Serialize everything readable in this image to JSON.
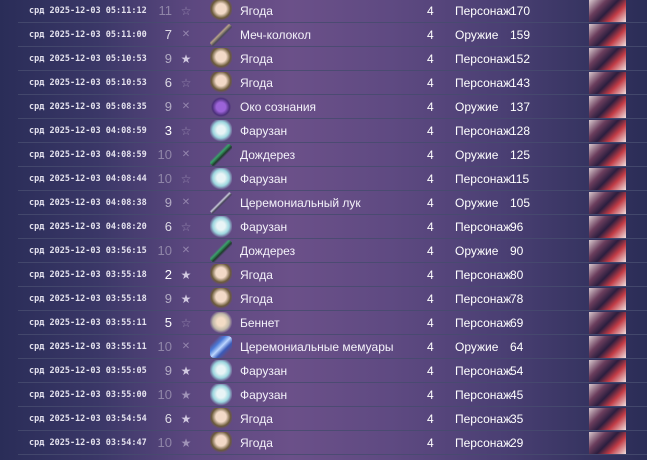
{
  "colors": {
    "bg_left": "#2a2d58",
    "bg_mid": "#6b5089",
    "text": "#ffffff"
  },
  "rows": [
    {
      "time": "срд 2025-12-03 05:11:12",
      "pity": "11",
      "mark": "star-outline-icon",
      "name": "Ягода",
      "icon": "char-ya",
      "rarity": "4",
      "type": "Персонаж",
      "number": "170"
    },
    {
      "time": "срд 2025-12-03 05:11:00",
      "pity": "7",
      "mark": "star-slash-icon",
      "name": "Меч-колокол",
      "icon": "wpn",
      "rarity": "4",
      "type": "Оружие",
      "number": "159"
    },
    {
      "time": "срд 2025-12-03 05:10:53",
      "pity": "9",
      "mark": "star-filled-icon",
      "name": "Ягода",
      "icon": "char-ya",
      "rarity": "4",
      "type": "Персонаж",
      "number": "152"
    },
    {
      "time": "срд 2025-12-03 05:10:53",
      "pity": "6",
      "mark": "star-outline-icon",
      "name": "Ягода",
      "icon": "char-ya",
      "rarity": "4",
      "type": "Персонаж",
      "number": "143"
    },
    {
      "time": "срд 2025-12-03 05:08:35",
      "pity": "9",
      "mark": "star-slash-icon",
      "name": "Око сознания",
      "icon": "wpn-eye",
      "rarity": "4",
      "type": "Оружие",
      "number": "137"
    },
    {
      "time": "срд 2025-12-03 04:08:59",
      "pity": "3",
      "mark": "star-outline-icon",
      "name": "Фарузан",
      "icon": "char-fa",
      "rarity": "4",
      "type": "Персонаж",
      "number": "128"
    },
    {
      "time": "срд 2025-12-03 04:08:59",
      "pity": "10",
      "mark": "star-slash-icon",
      "name": "Дождерез",
      "icon": "wpn-green",
      "rarity": "4",
      "type": "Оружие",
      "number": "125"
    },
    {
      "time": "срд 2025-12-03 04:08:44",
      "pity": "10",
      "mark": "star-outline-icon",
      "name": "Фарузан",
      "icon": "char-fa",
      "rarity": "4",
      "type": "Персонаж",
      "number": "115"
    },
    {
      "time": "срд 2025-12-03 04:08:38",
      "pity": "9",
      "mark": "star-slash-icon",
      "name": "Церемониальный лук",
      "icon": "wpn-bow",
      "rarity": "4",
      "type": "Оружие",
      "number": "105"
    },
    {
      "time": "срд 2025-12-03 04:08:20",
      "pity": "6",
      "mark": "star-outline-icon",
      "name": "Фарузан",
      "icon": "char-fa",
      "rarity": "4",
      "type": "Персонаж",
      "number": "96"
    },
    {
      "time": "срд 2025-12-03 03:56:15",
      "pity": "10",
      "mark": "star-slash-icon",
      "name": "Дождерез",
      "icon": "wpn-green",
      "rarity": "4",
      "type": "Оружие",
      "number": "90"
    },
    {
      "time": "срд 2025-12-03 03:55:18",
      "pity": "2",
      "mark": "star-filled-icon",
      "name": "Ягода",
      "icon": "char-ya",
      "rarity": "4",
      "type": "Персонаж",
      "number": "80"
    },
    {
      "time": "срд 2025-12-03 03:55:18",
      "pity": "9",
      "mark": "star-filled-icon",
      "name": "Ягода",
      "icon": "char-ya",
      "rarity": "4",
      "type": "Персонаж",
      "number": "78"
    },
    {
      "time": "срд 2025-12-03 03:55:11",
      "pity": "5",
      "mark": "star-outline-icon",
      "name": "Беннет",
      "icon": "char-be",
      "rarity": "4",
      "type": "Персонаж",
      "number": "69"
    },
    {
      "time": "срд 2025-12-03 03:55:11",
      "pity": "10",
      "mark": "star-slash-icon",
      "name": "Церемониальные мемуары",
      "icon": "wpn-book",
      "rarity": "4",
      "type": "Оружие",
      "number": "64"
    },
    {
      "time": "срд 2025-12-03 03:55:05",
      "pity": "9",
      "mark": "star-filled-icon",
      "name": "Фарузан",
      "icon": "char-fa",
      "rarity": "4",
      "type": "Персонаж",
      "number": "54"
    },
    {
      "time": "срд 2025-12-03 03:55:00",
      "pity": "10",
      "mark": "star-filled-icon",
      "name": "Фарузан",
      "icon": "char-fa",
      "rarity": "4",
      "type": "Персонаж",
      "number": "45"
    },
    {
      "time": "срд 2025-12-03 03:54:54",
      "pity": "6",
      "mark": "star-filled-icon",
      "name": "Ягода",
      "icon": "char-ya",
      "rarity": "4",
      "type": "Персонаж",
      "number": "35"
    },
    {
      "time": "срд 2025-12-03 03:54:47",
      "pity": "10",
      "mark": "star-filled-icon",
      "name": "Ягода",
      "icon": "char-ya",
      "rarity": "4",
      "type": "Персонаж",
      "number": "29"
    }
  ]
}
